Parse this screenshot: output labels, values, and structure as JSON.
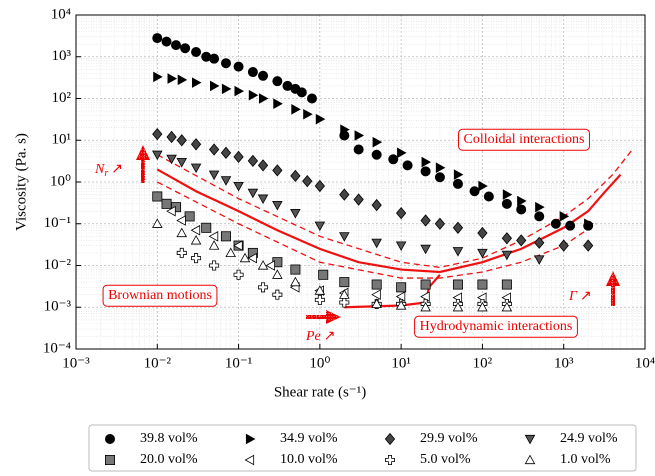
{
  "chart_data": {
    "type": "scatter",
    "x_label": "Shear rate (s⁻¹)",
    "y_label": "Viscosity (Pa. s)",
    "log_x": true,
    "log_y": true,
    "grid": true,
    "legend": "bottom",
    "xlim": [
      0.001,
      10000
    ],
    "ylim": [
      0.0001,
      10000
    ],
    "xticks": [
      {
        "value": 0.001,
        "label": "10⁻³"
      },
      {
        "value": 0.01,
        "label": "10⁻²"
      },
      {
        "value": 0.1,
        "label": "10⁻¹"
      },
      {
        "value": 1,
        "label": "10⁰"
      },
      {
        "value": 10,
        "label": "10¹"
      },
      {
        "value": 100,
        "label": "10²"
      },
      {
        "value": 1000,
        "label": "10³"
      },
      {
        "value": 10000,
        "label": "10⁴"
      }
    ],
    "yticks": [
      {
        "value": 0.0001,
        "label": "10⁻⁴"
      },
      {
        "value": 0.001,
        "label": "10⁻³"
      },
      {
        "value": 0.01,
        "label": "10⁻²"
      },
      {
        "value": 0.1,
        "label": "10⁻¹"
      },
      {
        "value": 1,
        "label": "10⁰"
      },
      {
        "value": 10,
        "label": "10¹"
      },
      {
        "value": 100,
        "label": "10²"
      },
      {
        "value": 1000,
        "label": "10³"
      },
      {
        "value": 10000,
        "label": "10⁴"
      }
    ],
    "series": [
      {
        "name": "39.8 vol%",
        "marker": "circle",
        "color": "#000000",
        "edge": "#000000",
        "x": [
          0.01,
          0.013,
          0.017,
          0.022,
          0.03,
          0.04,
          0.05,
          0.07,
          0.1,
          0.15,
          0.2,
          0.3,
          0.4,
          0.5,
          0.6,
          0.8,
          2,
          3,
          5,
          8,
          12,
          20,
          30,
          50,
          80,
          120,
          200,
          300,
          500,
          800,
          1200,
          2000
        ],
        "values": [
          2800,
          2300,
          1900,
          1600,
          1300,
          1000,
          900,
          700,
          580,
          430,
          350,
          260,
          200,
          170,
          140,
          100,
          13,
          6,
          4.5,
          3.5,
          2.5,
          1.8,
          1.3,
          0.9,
          0.6,
          0.45,
          0.3,
          0.22,
          0.15,
          0.1,
          0.09,
          0.09
        ]
      },
      {
        "name": "34.9 vol%",
        "marker": "triangle-right",
        "color": "#000000",
        "edge": "#000000",
        "x": [
          0.01,
          0.015,
          0.02,
          0.03,
          0.05,
          0.07,
          0.1,
          0.15,
          0.2,
          0.3,
          0.5,
          0.7,
          1,
          2,
          3,
          5,
          10,
          20,
          30,
          50,
          100,
          200,
          300,
          500,
          1000,
          2000
        ],
        "values": [
          330,
          300,
          280,
          240,
          200,
          170,
          150,
          120,
          100,
          75,
          55,
          42,
          32,
          18,
          13,
          9,
          5,
          3,
          2.2,
          1.5,
          0.8,
          0.5,
          0.35,
          0.25,
          0.15,
          0.1
        ]
      },
      {
        "name": "29.9 vol%",
        "marker": "diamond",
        "color": "#444444",
        "edge": "#000000",
        "x": [
          0.01,
          0.015,
          0.02,
          0.03,
          0.05,
          0.07,
          0.1,
          0.15,
          0.2,
          0.3,
          0.5,
          0.7,
          1,
          2,
          3,
          5,
          10,
          20,
          30,
          50,
          100,
          200,
          300,
          500,
          1000,
          2000
        ],
        "values": [
          14,
          12,
          10,
          8,
          6,
          5,
          4,
          3.2,
          2.5,
          1.9,
          1.4,
          1.05,
          0.8,
          0.5,
          0.38,
          0.28,
          0.18,
          0.12,
          0.1,
          0.08,
          0.06,
          0.045,
          0.04,
          0.035,
          0.03,
          0.03
        ]
      },
      {
        "name": "24.9 vol%",
        "marker": "triangle-down",
        "color": "#555555",
        "edge": "#000000",
        "x": [
          0.01,
          0.015,
          0.02,
          0.03,
          0.05,
          0.07,
          0.1,
          0.15,
          0.2,
          0.3,
          0.5,
          1,
          2,
          5,
          10,
          20,
          50,
          100,
          200,
          500
        ],
        "values": [
          4.5,
          3.6,
          3,
          2.2,
          1.5,
          1.1,
          0.8,
          0.55,
          0.4,
          0.28,
          0.18,
          0.09,
          0.05,
          0.035,
          0.03,
          0.025,
          0.022,
          0.02,
          0.018,
          0.014
        ]
      },
      {
        "name": "20.0 vol%",
        "marker": "square",
        "color": "#777777",
        "edge": "#000000",
        "x": [
          0.01,
          0.013,
          0.017,
          0.025,
          0.04,
          0.07,
          0.1,
          0.15,
          0.3,
          0.5,
          1.1,
          2,
          5,
          10,
          20,
          50,
          100,
          200
        ],
        "values": [
          0.45,
          0.3,
          0.25,
          0.15,
          0.08,
          0.05,
          0.03,
          0.02,
          0.012,
          0.008,
          0.006,
          0.004,
          0.0035,
          0.003,
          0.0035,
          0.0035,
          0.0035,
          0.0035
        ]
      },
      {
        "name": "10.0 vol%",
        "marker": "triangle-left",
        "color": "#ffffff",
        "edge": "#000000",
        "x": [
          0.015,
          0.02,
          0.03,
          0.05,
          0.1,
          0.15,
          0.25,
          0.5,
          1,
          2,
          5,
          10,
          20,
          50,
          100,
          200
        ],
        "values": [
          0.2,
          0.12,
          0.07,
          0.05,
          0.03,
          0.015,
          0.01,
          0.003,
          0.0025,
          0.0022,
          0.002,
          0.0018,
          0.0018,
          0.0017,
          0.0017,
          0.0017
        ]
      },
      {
        "name": "5.0 vol%",
        "marker": "plus",
        "color": "#ffffff",
        "edge": "#000000",
        "x": [
          0.02,
          0.03,
          0.05,
          0.1,
          0.2,
          0.3,
          1,
          2,
          5,
          10,
          20,
          50,
          100,
          200
        ],
        "values": [
          0.02,
          0.015,
          0.01,
          0.006,
          0.003,
          0.002,
          0.0015,
          0.0013,
          0.0012,
          0.0012,
          0.0012,
          0.0012,
          0.0012,
          0.0012
        ]
      },
      {
        "name": "1.0 vol%",
        "marker": "triangle-up",
        "color": "#ffffff",
        "edge": "#000000",
        "x": [
          0.01,
          0.02,
          0.03,
          0.05,
          0.08,
          0.12,
          0.2,
          0.3,
          0.5,
          1,
          2,
          5,
          10,
          20,
          50,
          100,
          200
        ],
        "values": [
          0.1,
          0.06,
          0.04,
          0.03,
          0.02,
          0.015,
          0.01,
          0.006,
          0.004,
          0.0025,
          0.002,
          0.0012,
          0.0011,
          0.001,
          0.001,
          0.001,
          0.001
        ]
      }
    ],
    "curves": [
      {
        "style": "solid",
        "color": "#ee1111",
        "x": [
          0.01,
          0.03,
          0.1,
          0.3,
          1,
          3,
          10,
          30,
          100,
          300,
          1000,
          2000,
          3000,
          5000
        ],
        "values": [
          2,
          0.6,
          0.2,
          0.07,
          0.025,
          0.012,
          0.008,
          0.007,
          0.012,
          0.025,
          0.08,
          0.2,
          0.5,
          1.5
        ]
      },
      {
        "style": "dashed",
        "color": "#ee1111",
        "x": [
          0.01,
          0.1,
          1,
          10,
          30,
          100,
          300,
          1000,
          2000,
          4000,
          7000
        ],
        "values": [
          4.5,
          0.4,
          0.05,
          0.012,
          0.009,
          0.015,
          0.04,
          0.15,
          0.4,
          1.5,
          6
        ]
      },
      {
        "style": "dashed",
        "color": "#ee1111",
        "x": [
          0.01,
          0.1,
          1,
          10,
          30,
          100,
          300,
          1000,
          2500
        ],
        "values": [
          1,
          0.1,
          0.012,
          0.005,
          0.005,
          0.007,
          0.012,
          0.03,
          0.1
        ]
      },
      {
        "style": "solid",
        "color": "#ee1111",
        "x": [
          2,
          10,
          20,
          22,
          30
        ],
        "values": [
          0.001,
          0.0011,
          0.0013,
          0.003,
          0.006
        ]
      }
    ],
    "annotations": [
      {
        "text": "Colloidal interactions",
        "boxed": true
      },
      {
        "text": "Brownian motions",
        "boxed": true
      },
      {
        "text": "Hydrodynamic interactions",
        "boxed": true
      },
      {
        "text": "N",
        "sub": "r",
        "arrow": "↗"
      },
      {
        "text": "Pe",
        "arrow": "↗"
      },
      {
        "text": "Γ",
        "arrow": "↗"
      }
    ]
  }
}
